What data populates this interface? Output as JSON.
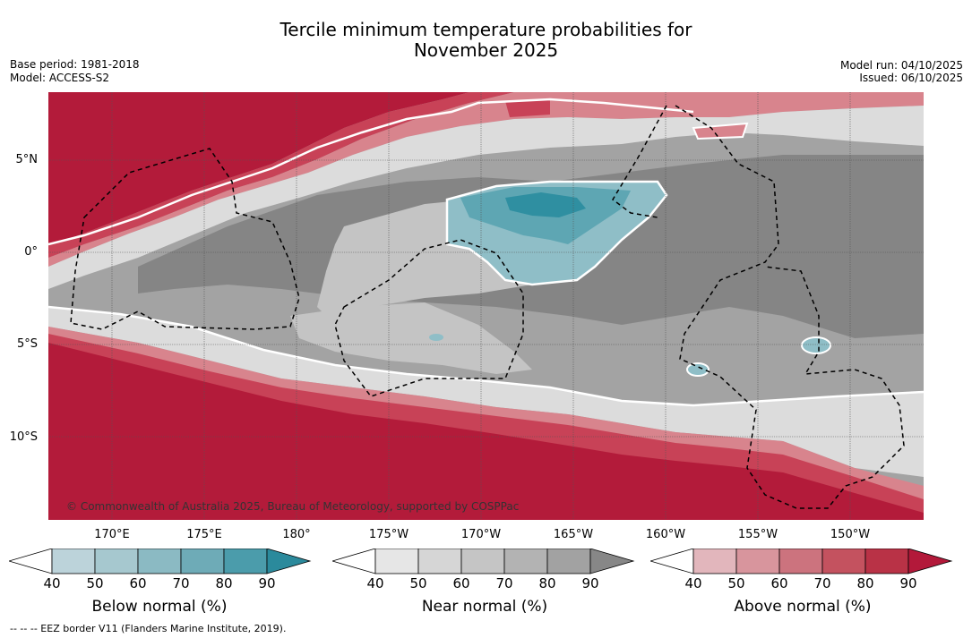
{
  "title": {
    "line1": "Tercile minimum temperature probabilities for",
    "line2": "November 2025"
  },
  "meta_left": {
    "base_period": "Base period: 1981-2018",
    "model": "Model: ACCESS-S2"
  },
  "meta_right": {
    "model_run": "Model run: 04/10/2025",
    "issued": "Issued: 06/10/2025"
  },
  "map": {
    "lat_labels": [
      "5°N",
      "0°",
      "5°S",
      "10°S"
    ],
    "lon_labels": [
      "170°E",
      "175°E",
      "180°",
      "175°W",
      "170°W",
      "165°W",
      "160°W",
      "155°W",
      "150°W"
    ],
    "copyright": "© Commonwealth of Australia 2025, Bureau of Meteorology, supported by COSPPac",
    "colors": {
      "above_dark": "#b31b3a",
      "above_mid": "#c84257",
      "above_light": "#d8848d",
      "near_dark": "#858585",
      "near_mid": "#a3a3a3",
      "near_light": "#c4c4c4",
      "near_vlight": "#dcdcdc",
      "below_light": "#8fbec7",
      "below_mid": "#5ea6b3",
      "below_dark": "#2f8fa1"
    }
  },
  "colorbars": [
    {
      "label": "Below normal (%)",
      "ticks": [
        "40",
        "50",
        "60",
        "70",
        "80",
        "90"
      ],
      "colors": [
        "#ffffff",
        "#bcd3da",
        "#a6c8cf",
        "#8bbac3",
        "#6eabb7",
        "#4b9cab",
        "#2b8a9c"
      ]
    },
    {
      "label": "Near normal (%)",
      "ticks": [
        "40",
        "50",
        "60",
        "70",
        "80",
        "90"
      ],
      "colors": [
        "#ffffff",
        "#e6e6e6",
        "#d6d6d6",
        "#c5c5c5",
        "#b3b3b3",
        "#a2a2a2",
        "#878787"
      ]
    },
    {
      "label": "Above normal (%)",
      "ticks": [
        "40",
        "50",
        "60",
        "70",
        "80",
        "90"
      ],
      "colors": [
        "#ffffff",
        "#e2b6bc",
        "#d8959d",
        "#cc737e",
        "#c4525f",
        "#b93246",
        "#b3193a"
      ]
    }
  ],
  "footnote": "--  --  -- EEZ border V11 (Flanders Marine Institute, 2019)."
}
